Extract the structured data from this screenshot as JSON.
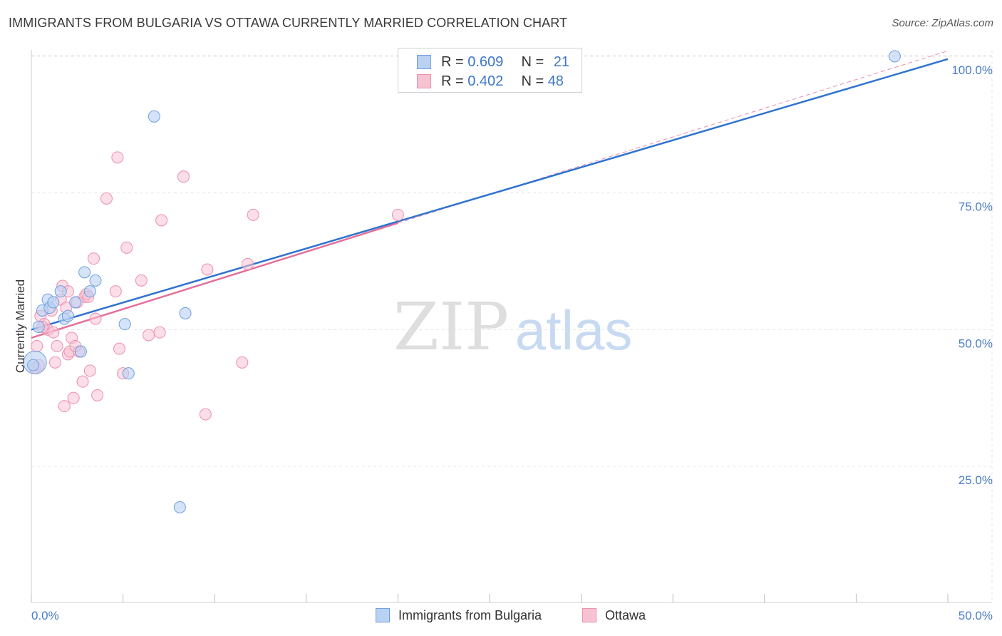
{
  "header": {
    "title": "IMMIGRANTS FROM BULGARIA VS OTTAWA CURRENTLY MARRIED CORRELATION CHART",
    "source": "Source: ZipAtlas.com"
  },
  "watermark": {
    "zip": "ZIP",
    "atlas": "atlas"
  },
  "colors": {
    "blue_fill": "#b9d1f3",
    "blue_stroke": "#6f9fe0",
    "blue_line": "#2f73cf",
    "pink_fill": "#f7c3d3",
    "pink_stroke": "#ec8fad",
    "pink_line": "#e4709a",
    "tick_text": "#4a7cc9"
  },
  "legend_top": [
    {
      "r_label": "R = ",
      "r_value": "0.609",
      "n_label": "N = ",
      "n_value": "21"
    },
    {
      "r_label": "R = ",
      "r_value": "0.402",
      "n_label": "N = ",
      "n_value": "48"
    }
  ],
  "chart_data": {
    "type": "scatter",
    "title": "IMMIGRANTS FROM BULGARIA VS OTTAWA CURRENTLY MARRIED CORRELATION CHART",
    "xlabel": "",
    "ylabel": "Currently Married",
    "xlim": [
      0,
      50
    ],
    "ylim": [
      0,
      102
    ],
    "x_tick_labels": [
      "0.0%",
      "50.0%"
    ],
    "y_ticks": [
      25,
      50,
      75,
      100
    ],
    "y_tick_labels": [
      "25.0%",
      "50.0%",
      "75.0%",
      "100.0%"
    ],
    "grid": true,
    "legend_position": "bottom",
    "series": [
      {
        "name": "Immigrants from Bulgaria",
        "color": "#6f9fe0",
        "x": [
          0.2,
          0.4,
          0.6,
          0.9,
          1.0,
          1.2,
          1.6,
          1.8,
          2.0,
          2.4,
          2.7,
          2.9,
          3.2,
          3.5,
          5.1,
          5.3,
          6.7,
          8.1,
          8.4,
          47.1,
          0.1
        ],
        "y": [
          44.0,
          50.5,
          53.5,
          55.5,
          54.0,
          55.0,
          57.0,
          52.0,
          52.5,
          55.0,
          46.0,
          60.5,
          57.0,
          59.0,
          51.0,
          42.0,
          89.0,
          17.5,
          53.0,
          100.0,
          43.5
        ],
        "trendline": {
          "x": [
            0,
            50
          ],
          "y": [
            50.0,
            99.5
          ]
        }
      },
      {
        "name": "Ottawa",
        "color": "#ec8fad",
        "x": [
          0.2,
          0.3,
          0.5,
          0.7,
          0.9,
          1.1,
          1.2,
          1.3,
          1.4,
          1.6,
          1.7,
          1.8,
          2.0,
          2.0,
          2.1,
          2.2,
          2.3,
          2.5,
          2.6,
          2.8,
          2.9,
          3.0,
          3.1,
          3.2,
          3.4,
          3.5,
          3.6,
          4.1,
          4.6,
          4.7,
          4.8,
          5.0,
          5.2,
          6.0,
          6.4,
          7.0,
          7.1,
          8.3,
          9.5,
          9.6,
          11.5,
          11.8,
          12.1,
          20.0,
          0.4,
          0.6,
          1.9,
          2.4
        ],
        "y": [
          43.0,
          47.0,
          52.5,
          51.0,
          50.0,
          53.5,
          49.5,
          44.0,
          47.0,
          55.5,
          58.0,
          36.0,
          45.5,
          57.0,
          46.0,
          48.5,
          37.5,
          55.0,
          46.0,
          40.5,
          56.0,
          56.5,
          56.0,
          42.5,
          63.0,
          52.0,
          38.0,
          74.0,
          57.0,
          81.5,
          46.5,
          42.0,
          65.0,
          59.0,
          49.0,
          49.5,
          70.0,
          78.0,
          34.5,
          61.0,
          44.0,
          62.0,
          71.0,
          71.0,
          43.5,
          50.5,
          54.0,
          47.0
        ],
        "trendline": {
          "x": [
            0,
            20
          ],
          "y": [
            48.5,
            69.5
          ]
        },
        "extrapolation": {
          "x": [
            20,
            50
          ],
          "y": [
            69.5,
            101.0
          ]
        }
      }
    ]
  }
}
